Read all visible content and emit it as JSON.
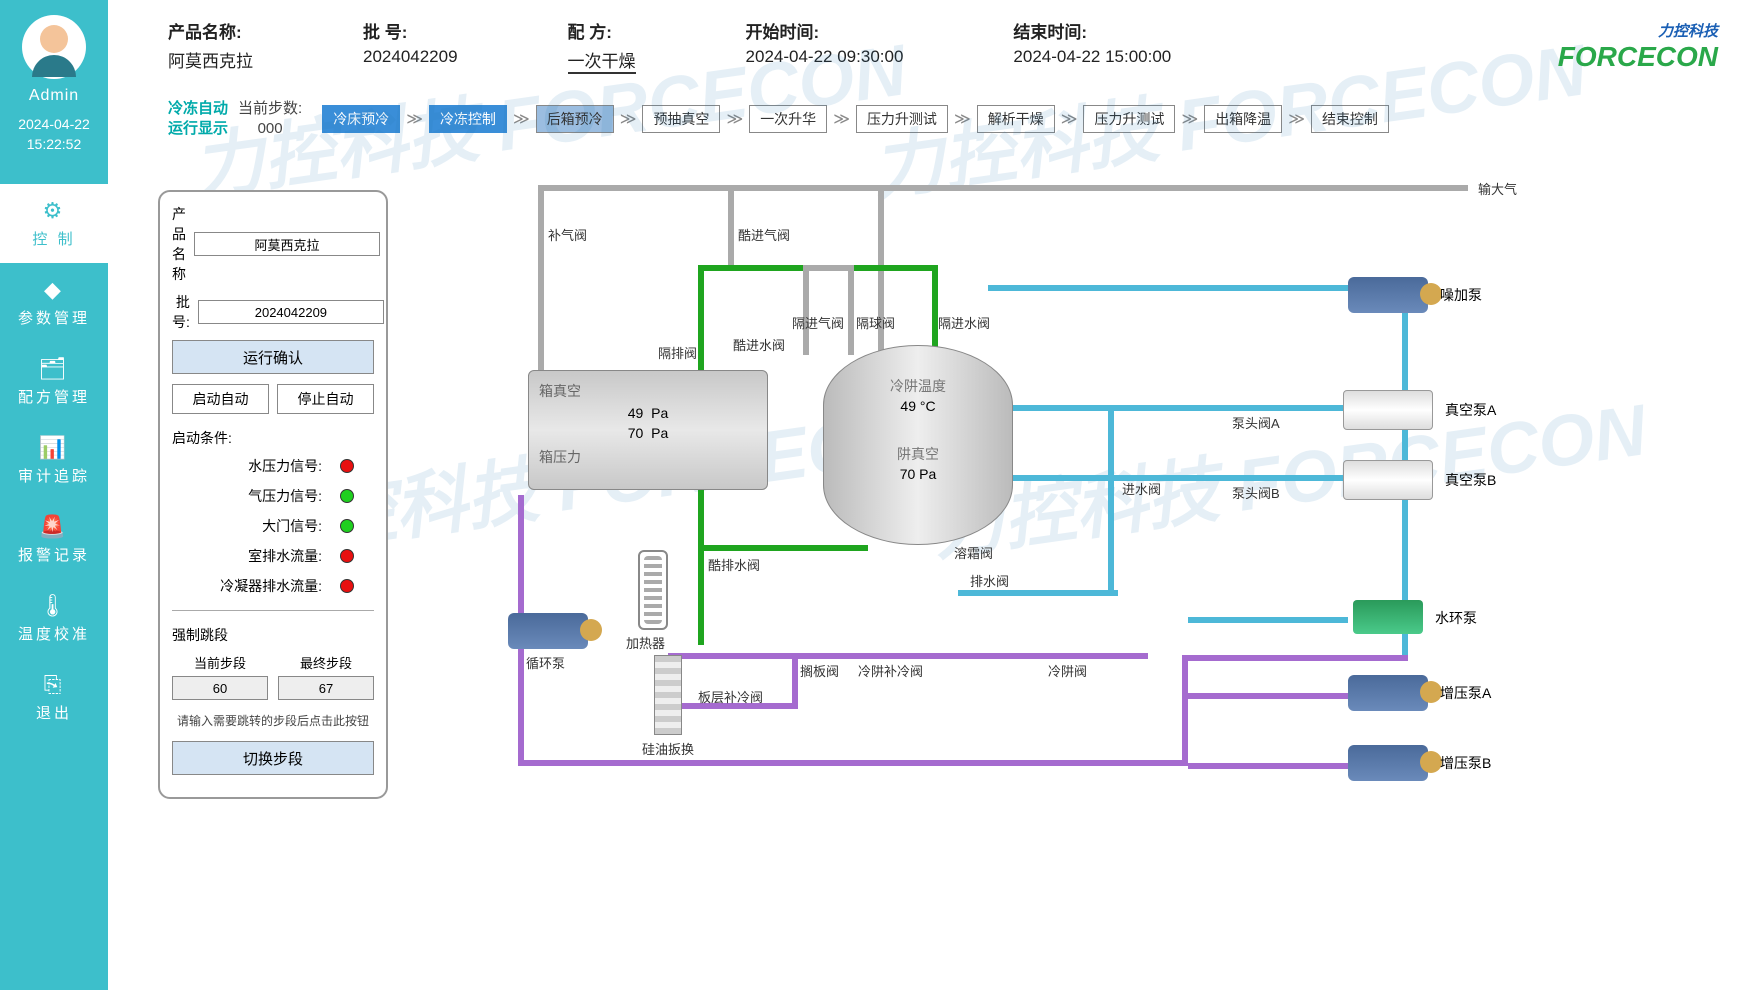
{
  "sidebar": {
    "username": "Admin",
    "date": "2024-04-22",
    "time": "15:22:52",
    "items": [
      {
        "icon": "⚙",
        "label": "控 制",
        "active": true
      },
      {
        "icon": "◆",
        "label": "参数管理"
      },
      {
        "icon": "🗂",
        "label": "配方管理"
      },
      {
        "icon": "📊",
        "label": "审计追踪"
      },
      {
        "icon": "🚨",
        "label": "报警记录"
      },
      {
        "icon": "🌡",
        "label": "温度校准"
      },
      {
        "icon": "⎘",
        "label": "退出"
      }
    ]
  },
  "header": {
    "product_label": "产品名称:",
    "product_value": "阿莫西克拉",
    "batch_label": "批 号:",
    "batch_value": "2024042209",
    "recipe_label": "配 方:",
    "recipe_value": "一次干燥",
    "start_label": "开始时间:",
    "start_value": "2024-04-22 09:30:00",
    "end_label": "结束时间:",
    "end_value": "2024-04-22 15:00:00",
    "logo_main": "FORCECON",
    "logo_sub": "力控科技"
  },
  "steps": {
    "label_line1": "冷冻自动",
    "label_line2": "运行显示",
    "count_label": "当前步数:",
    "count_value": "000",
    "items": [
      {
        "label": "冷床预冷",
        "state": "active"
      },
      {
        "label": "冷冻控制",
        "state": "active"
      },
      {
        "label": "后箱预冷",
        "state": "current"
      },
      {
        "label": "预抽真空",
        "state": ""
      },
      {
        "label": "一次升华",
        "state": ""
      },
      {
        "label": "压力升测试",
        "state": ""
      },
      {
        "label": "解析干燥",
        "state": ""
      },
      {
        "label": "压力升测试",
        "state": ""
      },
      {
        "label": "出箱降温",
        "state": ""
      },
      {
        "label": "结束控制",
        "state": ""
      }
    ]
  },
  "panel": {
    "product_label": "产品名称",
    "product_value": "阿莫西克拉",
    "batch_label": "批  号:",
    "batch_value": "2024042209",
    "btn_confirm": "运行确认",
    "btn_start": "启动自动",
    "btn_stop": "停止自动",
    "conditions_title": "启动条件:",
    "statuses": [
      {
        "label": "水压力信号:",
        "led": "red"
      },
      {
        "label": "气压力信号:",
        "led": "green"
      },
      {
        "label": "大门信号:",
        "led": "green"
      },
      {
        "label": "室排水流量:",
        "led": "red"
      },
      {
        "label": "冷凝器排水流量:",
        "led": "red"
      }
    ],
    "jump_title": "强制跳段",
    "cur_step_label": "当前步段",
    "cur_step_value": "60",
    "final_step_label": "最终步段",
    "final_step_value": "67",
    "hint": "请输入需要跳转的步段后点击此按钮",
    "btn_switch": "切换步段"
  },
  "diagram": {
    "labels": {
      "atmosphere": "输大气",
      "buqi_valve": "补气阀",
      "ku_jinqi_valve": "酷进气阀",
      "ge_jinqi_valve": "隔进气阀",
      "ge_qiu_valve": "隔球阀",
      "ge_jinshui_valve": "隔进水阀",
      "ge_pai_valve": "隔排阀",
      "ku_jinshui_valve": "酷进水阀",
      "box_vacuum": "箱真空",
      "box_vac_val": "49",
      "box_vac_unit": "Pa",
      "box_pressure_val": "70",
      "box_pressure_unit": "Pa",
      "box_pressure": "箱压力",
      "trap_temp": "冷阱温度",
      "trap_temp_val": "49",
      "trap_temp_unit": "°C",
      "trap_vac": "阱真空",
      "trap_vac_val": "70",
      "trap_vac_unit": "Pa",
      "pump_head_a": "泵头阀A",
      "pump_head_b": "泵头阀B",
      "jinshui_valve": "进水阀",
      "paishui_valve": "排水阀",
      "defrost_valve": "溶霜阀",
      "ku_paishui_valve": "酷排水阀",
      "heater": "加热器",
      "circ_pump": "循环泵",
      "geban_valve": "搁板阀",
      "banceng_buleng": "板层补冷阀",
      "silicone_ex": "硅油扳换",
      "lengjing_buleng": "冷阱补冷阀",
      "lengjing_valve": "冷阱阀",
      "noise_pump": "噪加泵",
      "vac_pump_a": "真空泵A",
      "vac_pump_b": "真空泵B",
      "ring_pump": "水环泵",
      "boost_pump_a": "增压泵A",
      "boost_pump_b": "增压泵B"
    },
    "colors": {
      "cyan": "#4db8d8",
      "green": "#1fa51f",
      "purple": "#a56bcf",
      "grey": "#aaaaaa",
      "vessel_bg": "#d8d8d8"
    }
  },
  "watermark": "力控科技 FORCECON"
}
